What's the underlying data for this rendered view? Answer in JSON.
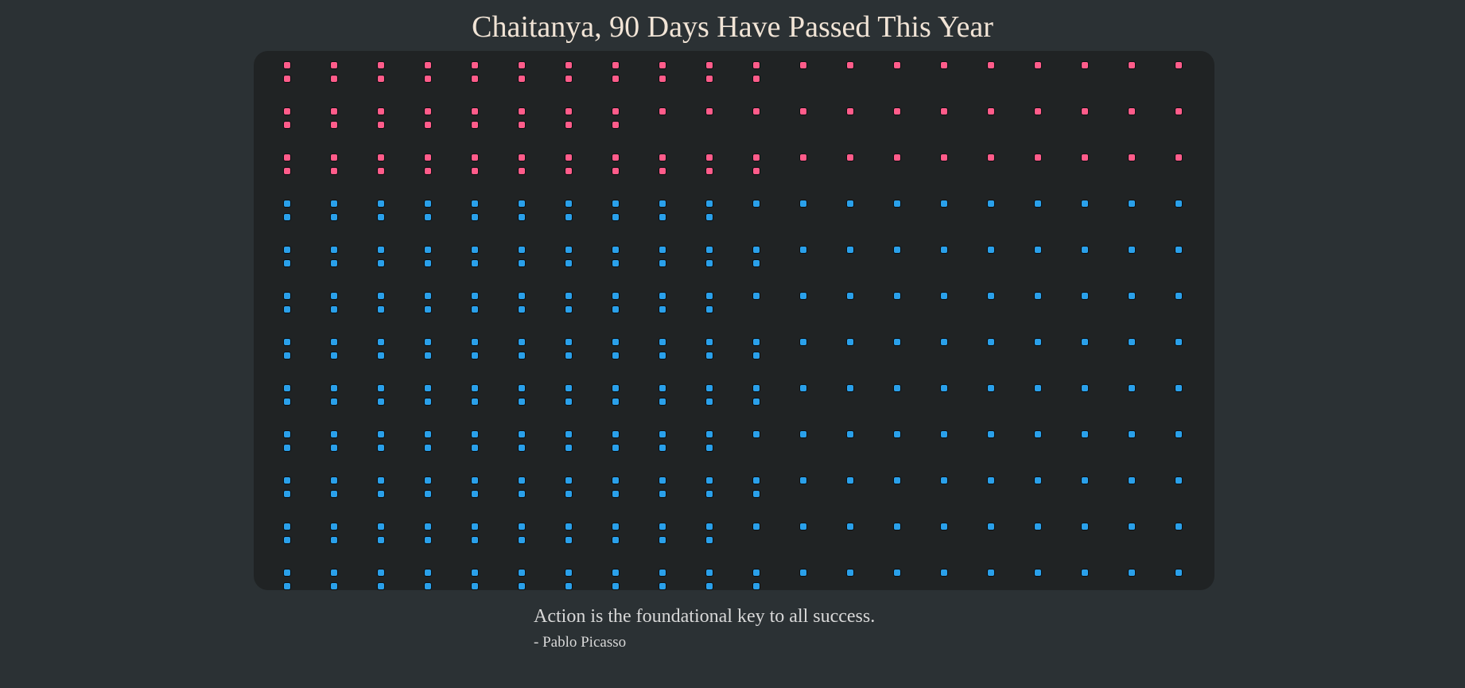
{
  "title": "Chaitanya, 90 Days Have Passed This Year",
  "calendar": {
    "days_passed": 90,
    "month_days": [
      31,
      28,
      31,
      30,
      31,
      30,
      31,
      31,
      30,
      31,
      30,
      31
    ],
    "colors": {
      "passed": "#ff5c8a",
      "remaining": "#2aa0ea"
    }
  },
  "quote": {
    "text": "Action is the foundational key to all success.",
    "author": "- Pablo Picasso"
  }
}
